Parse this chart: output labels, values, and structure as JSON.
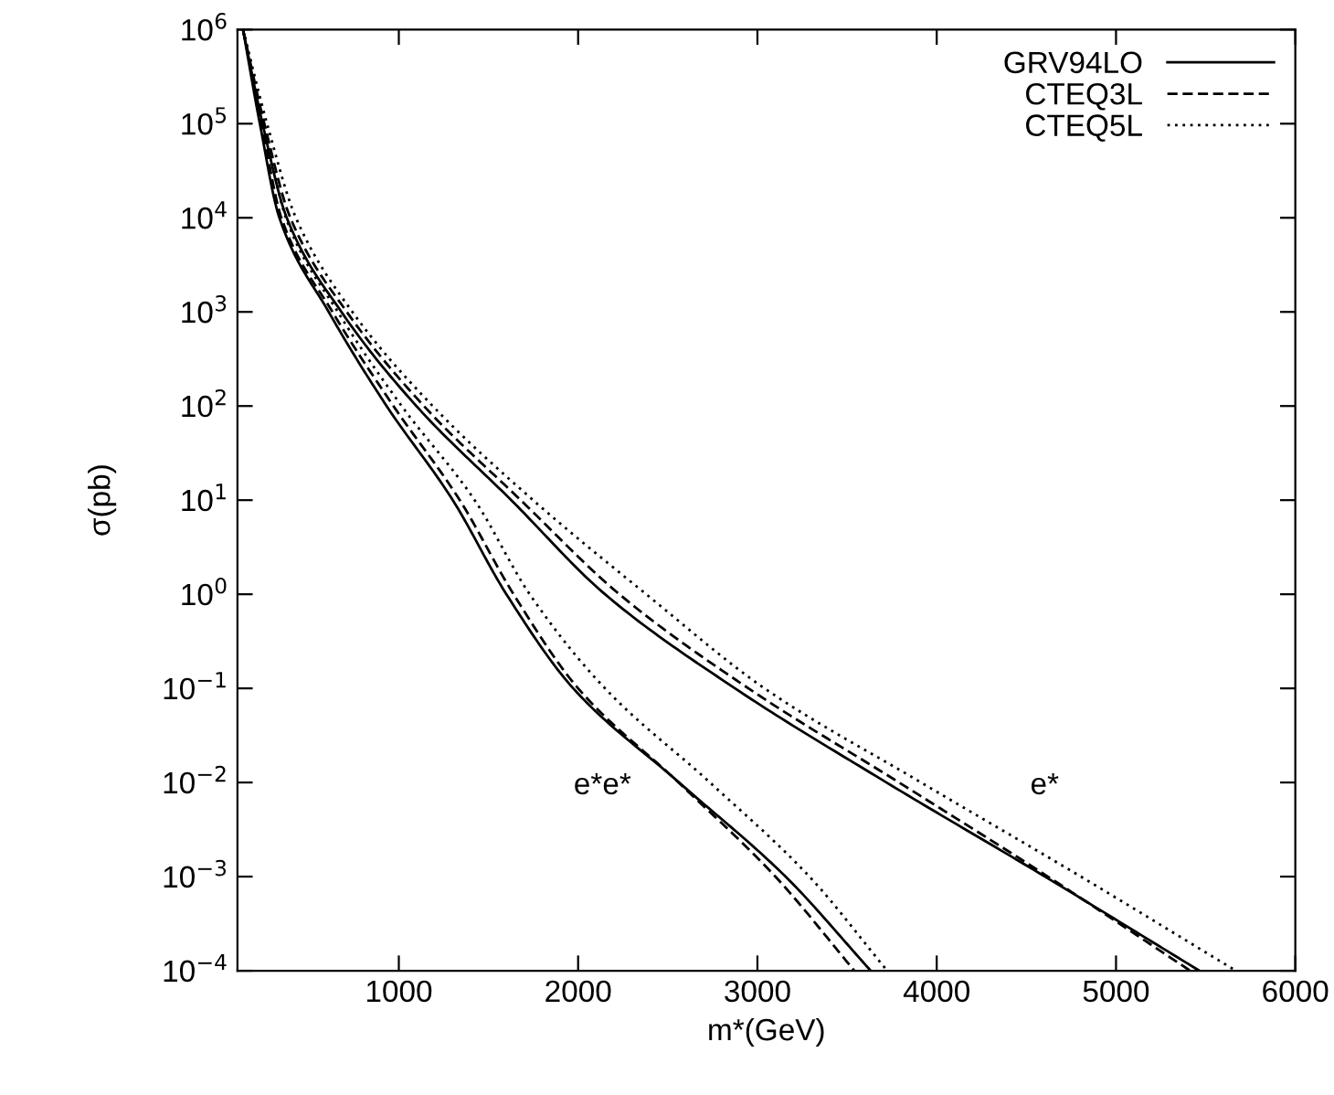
{
  "chart_data": {
    "type": "line",
    "xlabel": "m*(GeV)",
    "ylabel": "σ(pb)",
    "log": "y",
    "xlim": [
      100,
      6000
    ],
    "xticks": [
      1000,
      2000,
      3000,
      4000,
      5000,
      6000
    ],
    "ylim": [
      0.0001,
      1000000
    ],
    "yticks": [
      {
        "value": 0.0001,
        "label": "10$^{−4}$"
      },
      {
        "value": 0.001,
        "label": "10$^{−3}$"
      },
      {
        "value": 0.01,
        "label": "10$^{−2}$"
      },
      {
        "value": 0.1,
        "label": "10$^{−1}$"
      },
      {
        "value": 1,
        "label": "10$^{0}$"
      },
      {
        "value": 10,
        "label": "10$^{1}$"
      },
      {
        "value": 100,
        "label": "10$^{2}$"
      },
      {
        "value": 1000,
        "label": "10$^{3}$"
      },
      {
        "value": 10000,
        "label": "10$^{4}$"
      },
      {
        "value": 100000,
        "label": "10$^{5}$"
      },
      {
        "value": 1000000,
        "label": "10$^{6}$"
      }
    ],
    "grid": false,
    "legend": "top right",
    "marker": "none",
    "series": [
      {
        "name": "GRV94LO",
        "color": "#000000",
        "line_style": "solid",
        "x": [
          131,
          240,
          375,
          680,
          1098,
          1627,
          2150,
          2875,
          3720,
          4604,
          5465
        ],
        "values": [
          1000000,
          100000,
          10000,
          1000,
          100,
          10,
          1,
          0.1,
          0.01,
          0.001,
          0.0001
        ]
      },
      {
        "name": "CTEQ3L",
        "color": "#000000",
        "line_style": "dashed",
        "x": [
          131,
          250,
          395,
          710,
          1140,
          1680,
          2230,
          2950,
          3790,
          4620,
          5414
        ],
        "values": [
          1000000,
          100000,
          10000,
          1000,
          100,
          10,
          1,
          0.1,
          0.01,
          0.001,
          0.0001
        ]
      },
      {
        "name": "CTEQ5L",
        "color": "#000000",
        "line_style": "dotted",
        "x": [
          131,
          265,
          426,
          741,
          1189,
          1749,
          2380,
          3040,
          3913,
          4804,
          5668
        ],
        "values": [
          1000000,
          100000,
          10000,
          1000,
          100,
          10,
          1,
          0.1,
          0.01,
          0.001,
          0.0001
        ]
      },
      {
        "color": "#000000",
        "line_style": "solid",
        "x": [
          131,
          225,
          334,
          609,
          932,
          1301,
          1600,
          1973,
          2563,
          3157,
          3632
        ],
        "values": [
          1000000,
          100000,
          10000,
          1000,
          100,
          10,
          1,
          0.1,
          0.01,
          0.001,
          0.0001
        ]
      },
      {
        "color": "#000000",
        "line_style": "dashed",
        "x": [
          131,
          235,
          345,
          630,
          970,
          1340,
          1640,
          2000,
          2560,
          3100,
          3541
        ],
        "values": [
          1000000,
          100000,
          10000,
          1000,
          100,
          10,
          1,
          0.1,
          0.01,
          0.001,
          0.0001
        ]
      },
      {
        "color": "#000000",
        "line_style": "dotted",
        "x": [
          131,
          250,
          370,
          660,
          1016,
          1423,
          1730,
          2150,
          2735,
          3290,
          3724
        ],
        "values": [
          1000000,
          100000,
          10000,
          1000,
          100,
          10,
          1,
          0.1,
          0.01,
          0.001,
          0.0001
        ]
      }
    ],
    "annotations": [
      "e*e*",
      "e*"
    ]
  }
}
